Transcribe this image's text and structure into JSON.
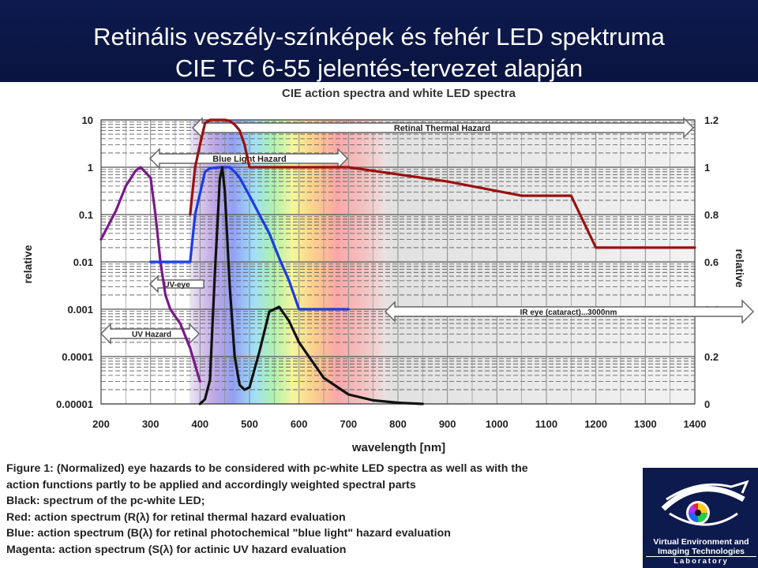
{
  "slide": {
    "title_line1": "Retinális veszély-színképek és fehér LED spektruma",
    "title_line2": "CIE TC 6-55 jelentés-tervezet alapján"
  },
  "chart_data": {
    "type": "line",
    "title": "CIE action spectra and white LED spectra",
    "xlabel": "wavelength [nm]",
    "ylabel_left": "relative",
    "ylabel_right": "relative",
    "xlim": [
      200,
      1400
    ],
    "x_ticks": [
      "200",
      "300",
      "400",
      "500",
      "600",
      "700",
      "800",
      "900",
      "1000",
      "1100",
      "1200",
      "1300",
      "1400"
    ],
    "y_left_scale": "log",
    "y_left_lim": [
      1e-05,
      10
    ],
    "y_left_ticks": [
      "10",
      "1",
      "0.1",
      "0.01",
      "0.001",
      "0.0001",
      "0.00001"
    ],
    "y_right_lim": [
      0,
      1.2
    ],
    "y_right_ticks": [
      "1.2",
      "1",
      "0.8",
      "0.6",
      "0.4",
      "0.2",
      "0"
    ],
    "grid": true,
    "annotations": {
      "retinal_thermal": "Retinal Thermal Hazard",
      "blue_light": "Blue Light Hazard",
      "uv_eye": "UV-eye",
      "uv_hazard": "UV Hazard",
      "ir_eye": "IR eye (cataract)...3000nm"
    },
    "series": [
      {
        "key": "S",
        "color": "#7a1a8a",
        "axis": "left",
        "x": [
          200,
          230,
          250,
          270,
          280,
          300,
          310,
          320,
          330,
          340,
          350,
          360,
          380,
          400
        ],
        "y": [
          0.03,
          0.12,
          0.4,
          0.85,
          1.0,
          0.6,
          0.1,
          0.01,
          0.002,
          0.001,
          0.0007,
          0.0005,
          0.00015,
          3e-05
        ]
      },
      {
        "key": "B",
        "color": "#1a3ce0",
        "axis": "left",
        "x": [
          300,
          380,
          390,
          410,
          420,
          440,
          460,
          470,
          480,
          500,
          520,
          540,
          560,
          580,
          600,
          700
        ],
        "y": [
          0.01,
          0.01,
          0.1,
          0.8,
          0.95,
          1.0,
          1.0,
          0.8,
          0.6,
          0.25,
          0.1,
          0.04,
          0.012,
          0.004,
          0.001,
          0.001
        ]
      },
      {
        "key": "R",
        "color": "#9a1010",
        "axis": "left",
        "x": [
          380,
          390,
          400,
          410,
          420,
          430,
          440,
          450,
          460,
          470,
          480,
          490,
          500,
          700,
          900,
          1050,
          1150,
          1200,
          1400
        ],
        "y": [
          0.1,
          1.0,
          3.0,
          8.5,
          10.0,
          10.0,
          10.0,
          10.0,
          9.5,
          8.0,
          6.0,
          3.0,
          1.0,
          1.0,
          0.5,
          0.25,
          0.25,
          0.02,
          0.02
        ]
      },
      {
        "key": "LED",
        "color": "#111111",
        "axis": "right",
        "x": [
          400,
          410,
          420,
          430,
          440,
          445,
          450,
          460,
          470,
          480,
          490,
          500,
          520,
          540,
          560,
          580,
          600,
          650,
          700,
          750,
          800,
          850
        ],
        "y": [
          0.0,
          0.02,
          0.1,
          0.55,
          0.95,
          1.0,
          0.9,
          0.5,
          0.2,
          0.08,
          0.06,
          0.07,
          0.22,
          0.39,
          0.41,
          0.35,
          0.26,
          0.11,
          0.04,
          0.015,
          0.005,
          0.0
        ]
      }
    ]
  },
  "caption": {
    "line1": "Figure 1: (Normalized) eye hazards to be considered with pc-white LED spectra as well as with the",
    "line2": "action functions partly to be applied and accordingly weighted spectral parts",
    "line3": "Black: spectrum of the pc-white LED;",
    "line4": "Red: action spectrum (R(λ) for retinal thermal hazard evaluation",
    "line5": "Blue: action spectrum (B(λ) for retinal photochemical \"blue light\" hazard evaluation",
    "line6": "Magenta: action spectrum (S(λ) for actinic UV hazard evaluation"
  },
  "logo": {
    "icon": "eye-logo-icon",
    "line1": "Virtual Environment and",
    "line2": "Imaging Technologies",
    "line3": "Laboratory"
  }
}
